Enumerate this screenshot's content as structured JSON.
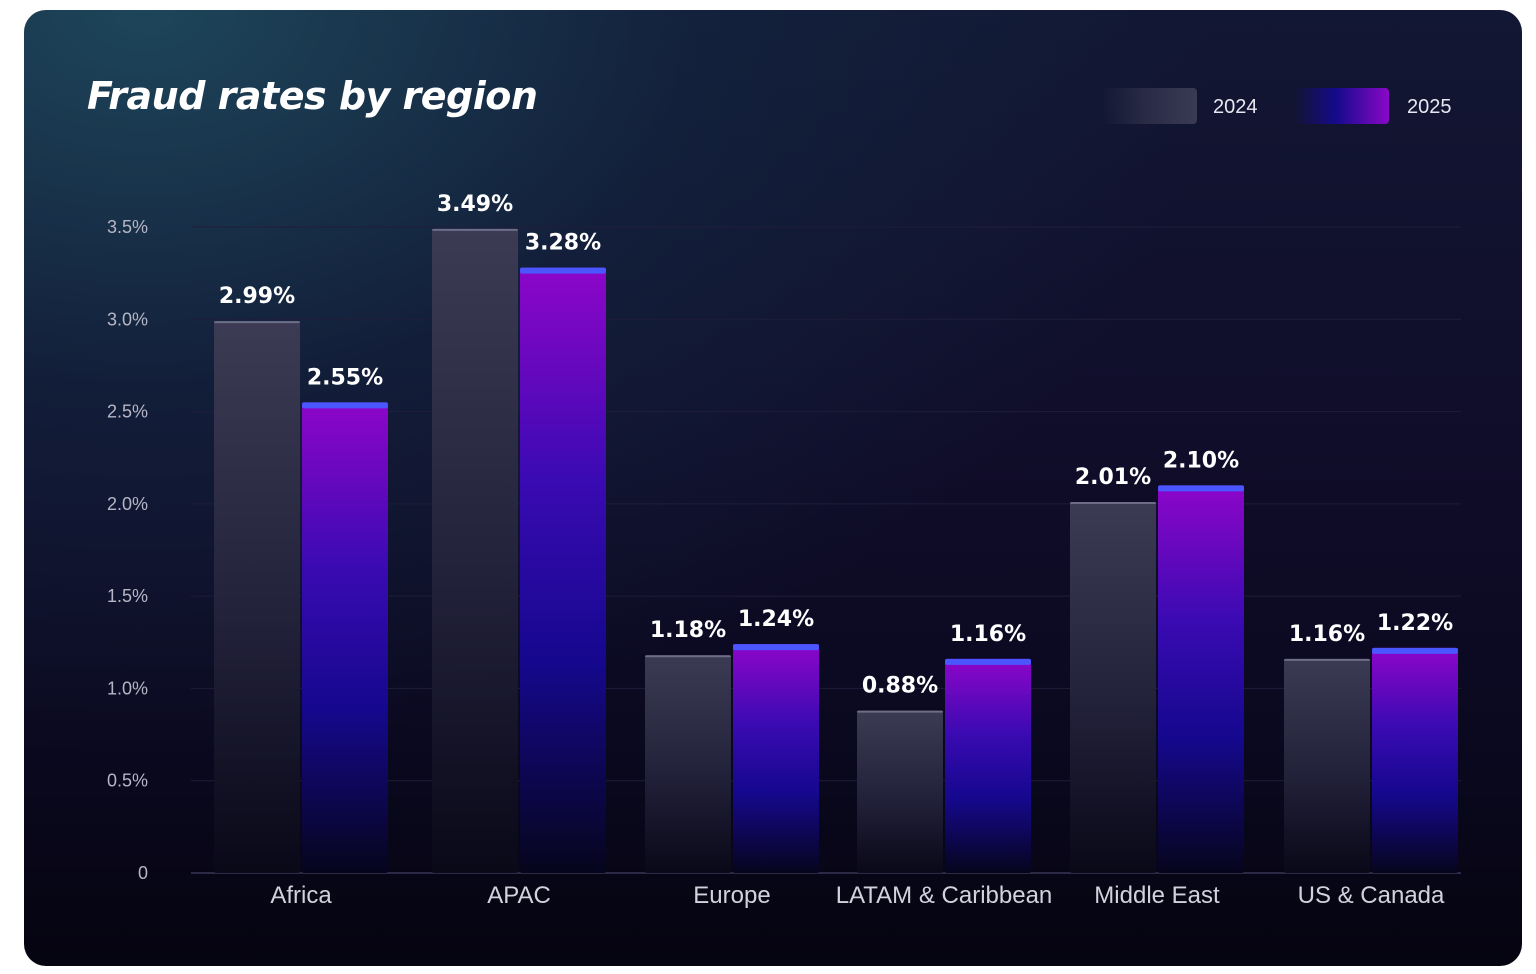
{
  "chart_data": {
    "type": "bar",
    "title": "Fraud rates by region",
    "categories": [
      "Africa",
      "APAC",
      "Europe",
      "LATAM & Caribbean",
      "Middle East",
      "US & Canada"
    ],
    "series": [
      {
        "name": "2024",
        "values": [
          2.99,
          3.49,
          1.18,
          0.88,
          2.01,
          1.16
        ],
        "labels": [
          "2.99%",
          "3.49%",
          "1.18%",
          "0.88%",
          "2.01%",
          "1.16%"
        ],
        "color": "#3a3a54"
      },
      {
        "name": "2025",
        "values": [
          2.55,
          3.28,
          1.24,
          1.16,
          2.1,
          1.22
        ],
        "labels": [
          "2.55%",
          "3.28%",
          "1.24%",
          "1.16%",
          "2.10%",
          "1.22%"
        ],
        "color": "#8a08c8"
      }
    ],
    "yticks": [
      0,
      0.5,
      1.0,
      1.5,
      2.0,
      2.5,
      3.0,
      3.5
    ],
    "ytick_labels": [
      "0",
      "0.5%",
      "1.0%",
      "1.5%",
      "2.0%",
      "2.5%",
      "3.0%",
      "3.5%"
    ],
    "ylim": [
      0,
      3.5
    ],
    "xlabel": "",
    "ylabel": "",
    "grid": true,
    "legend_position": "top-right"
  },
  "colors": {
    "background_dark": "#0b0920",
    "bar_2024": "#3a3a54",
    "bar_2025_top": "#8a08c8",
    "bar_2025_bottom": "#150a8c",
    "bar_2025_cap": "#4a56ff"
  }
}
